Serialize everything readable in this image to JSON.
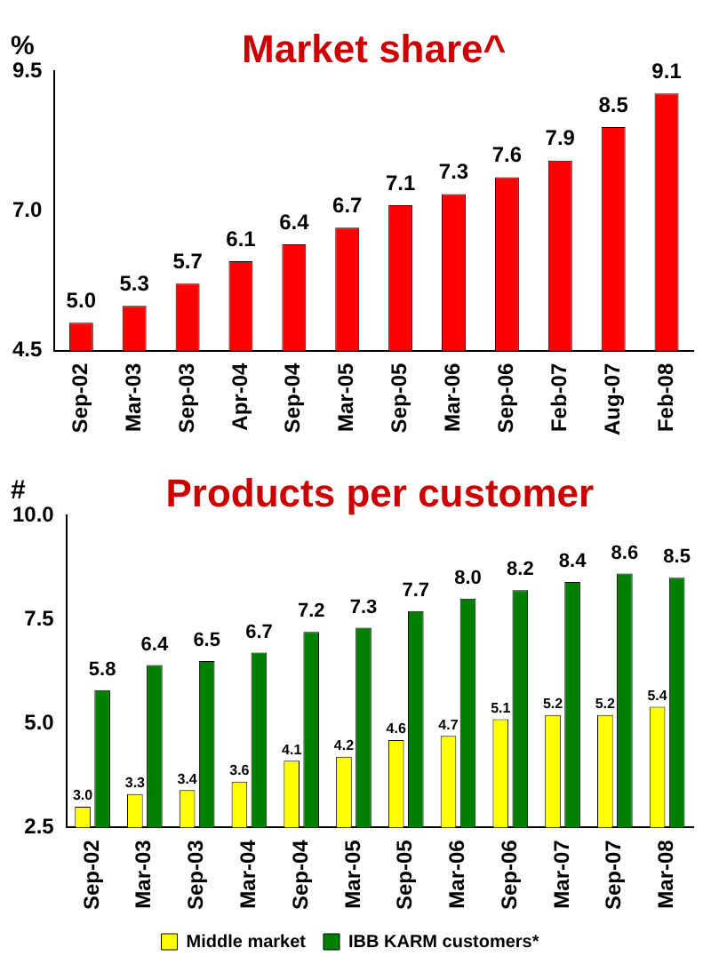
{
  "chart_data": [
    {
      "type": "bar",
      "title": "Market share^",
      "ylabel": "%",
      "categories": [
        "Sep-02",
        "Mar-03",
        "Sep-03",
        "Apr-04",
        "Sep-04",
        "Mar-05",
        "Sep-05",
        "Mar-06",
        "Sep-06",
        "Feb-07",
        "Aug-07",
        "Feb-08"
      ],
      "series": [
        {
          "color": "#ff0000",
          "values": [
            5.0,
            5.3,
            5.7,
            6.1,
            6.4,
            6.7,
            7.1,
            7.3,
            7.6,
            7.9,
            8.5,
            9.1
          ],
          "value_labels": [
            "5.0",
            "5.3",
            "5.7",
            "6.1",
            "6.4",
            "6.7",
            "7.1",
            "7.3",
            "7.6",
            "7.9",
            "8.5",
            "9.1"
          ]
        }
      ],
      "ylim": [
        4.5,
        9.5
      ],
      "yticks": [
        {
          "value": 4.5,
          "label": "4.5"
        },
        {
          "value": 7,
          "label": "7.0"
        },
        {
          "value": 9.5,
          "label": "9.5"
        }
      ],
      "grid": false,
      "legend": false
    },
    {
      "type": "bar",
      "title": "Products per customer",
      "ylabel": "#",
      "categories": [
        "Sep-02",
        "Mar-03",
        "Sep-03",
        "Mar-04",
        "Sep-04",
        "Mar-05",
        "Sep-05",
        "Mar-06",
        "Sep-06",
        "Mar-07",
        "Sep-07",
        "Mar-08"
      ],
      "series": [
        {
          "name": "Middle market",
          "color": "#ffff00",
          "values": [
            3.0,
            3.3,
            3.4,
            3.6,
            4.1,
            4.2,
            4.6,
            4.7,
            5.1,
            5.2,
            5.2,
            5.4
          ],
          "value_labels": [
            "3.0",
            "3.3",
            "3.4",
            "3.6",
            "4.1",
            "4.2",
            "4.6",
            "4.7",
            "5.1",
            "5.2",
            "5.2",
            "5.4"
          ]
        },
        {
          "name": "IBB KARM customers*",
          "color": "#008000",
          "values": [
            5.8,
            6.4,
            6.5,
            6.7,
            7.2,
            7.3,
            7.7,
            8.0,
            8.2,
            8.4,
            8.6,
            8.5
          ],
          "value_labels": [
            "5.8",
            "6.4",
            "6.5",
            "6.7",
            "7.2",
            "7.3",
            "7.7",
            "8.0",
            "8.2",
            "8.4",
            "8.6",
            "8.5"
          ]
        }
      ],
      "ylim": [
        2.5,
        10
      ],
      "yticks": [
        {
          "value": 2.5,
          "label": "2.5"
        },
        {
          "value": 5,
          "label": "5.0"
        },
        {
          "value": 7.5,
          "label": "7.5"
        },
        {
          "value": 10,
          "label": "10.0"
        }
      ],
      "grid": false,
      "legend": "bottom"
    }
  ]
}
